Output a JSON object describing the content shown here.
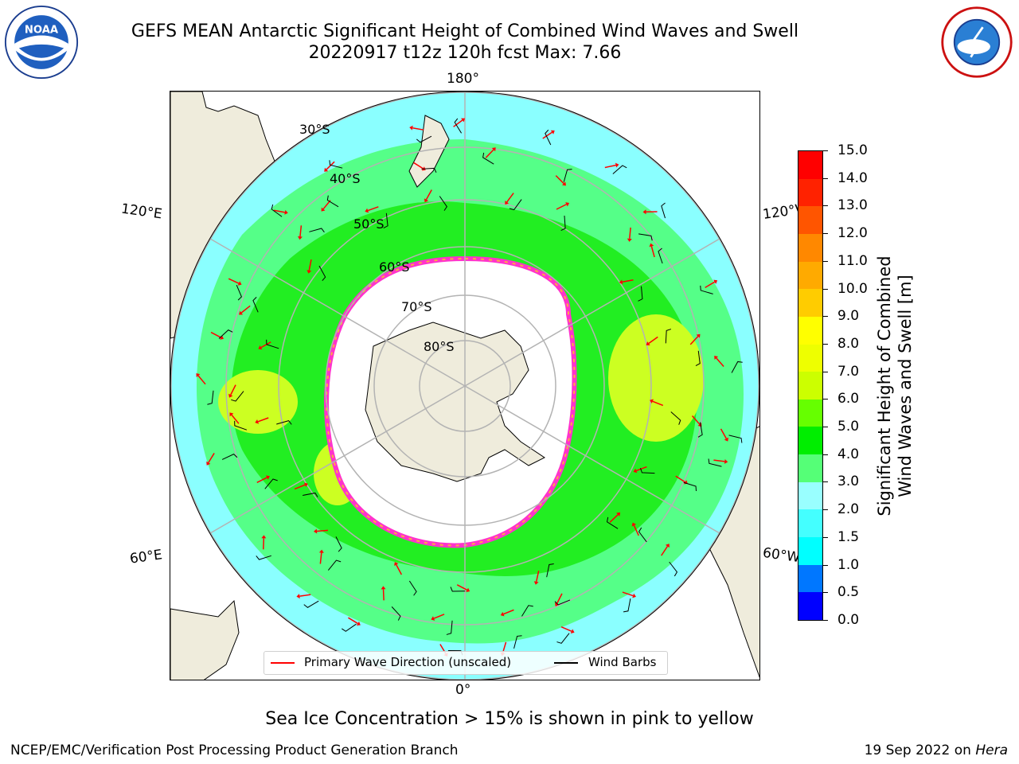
{
  "title": {
    "line1": "GEFS MEAN Antarctic Significant Height of Combined Wind Waves and Swell",
    "line2": "20220917 t12z 120h fcst   Max: 7.66"
  },
  "logos": {
    "left": "noaa-logo",
    "right": "national-weather-service-logo",
    "left_text": "NOAA",
    "right_text": "NATIONAL WEATHER SERVICE"
  },
  "map": {
    "projection": "south-polar-stereographic",
    "lon_labels": {
      "top": "180°",
      "bottom": "0°",
      "upper_left": "120°E",
      "upper_right": "120°W",
      "lower_left": "60°E",
      "lower_right": "60°W"
    },
    "lat_labels": [
      "30°S",
      "40°S",
      "50°S",
      "60°S",
      "70°S",
      "80°S"
    ],
    "colors": {
      "land": "#efecdc",
      "ocean_low": "#8affff",
      "ocean_mid": "#55ff88",
      "ocean_high": "#22ee22",
      "peak": "#ccff22",
      "ice": "#ffffff",
      "ice_edge": "#ff33cc",
      "ice_edge_inner": "#ffaa44",
      "grid": "#b3b3b3"
    }
  },
  "colorbar": {
    "title_line1": "Significant Height of Combined",
    "title_line2": "Wind Waves and Swell [m]",
    "ticks": [
      "0.0",
      "0.5",
      "1.0",
      "1.5",
      "2.0",
      "3.0",
      "4.0",
      "5.0",
      "6.0",
      "7.0",
      "8.0",
      "9.0",
      "10.0",
      "11.0",
      "12.0",
      "13.0",
      "14.0",
      "15.0"
    ],
    "colors": [
      "#0000ff",
      "#0077ff",
      "#00ffff",
      "#44ffff",
      "#99ffff",
      "#55ff77",
      "#00ee00",
      "#66ff00",
      "#ccff00",
      "#eeff00",
      "#ffff00",
      "#ffcc00",
      "#ffaa00",
      "#ff8800",
      "#ff5500",
      "#ff2200",
      "#ff0000"
    ]
  },
  "legend": {
    "wave_label": "Primary Wave Direction (unscaled)",
    "wave_color": "#ff0000",
    "wind_label": "Wind Barbs",
    "wind_color": "#000000"
  },
  "footer": {
    "note": "Sea Ice Concentration > 15% is shown in pink to yellow",
    "credit": "NCEP/EMC/Verification Post Processing Product Generation Branch",
    "date": "19 Sep 2022 on",
    "machine": "Hera"
  }
}
